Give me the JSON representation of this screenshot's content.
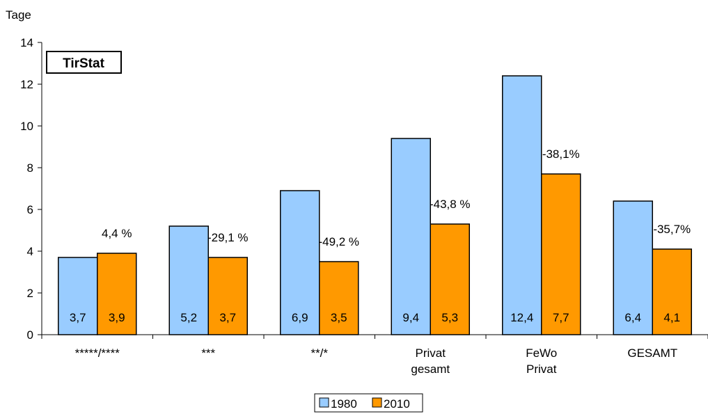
{
  "chart_data": {
    "type": "bar",
    "ylabel": "Tage",
    "ylim": [
      0,
      14
    ],
    "yticks": [
      0,
      2,
      4,
      6,
      8,
      10,
      12,
      14
    ],
    "grid": false,
    "badge": "TirStat",
    "categories": [
      [
        "*****/****"
      ],
      [
        "***"
      ],
      [
        "**/*"
      ],
      [
        "Privat",
        "gesamt"
      ],
      [
        "FeWo",
        "Privat"
      ],
      [
        "GESAMT"
      ]
    ],
    "series": [
      {
        "name": "1980",
        "color": "#99ccff",
        "values": [
          3.7,
          5.2,
          6.9,
          9.4,
          12.4,
          6.4
        ],
        "labels": [
          "3,7",
          "5,2",
          "6,9",
          "9,4",
          "12,4",
          "6,4"
        ]
      },
      {
        "name": "2010",
        "color": "#ff9900",
        "values": [
          3.9,
          3.7,
          3.5,
          5.3,
          7.7,
          4.1
        ],
        "labels": [
          "3,9",
          "3,7",
          "3,5",
          "5,3",
          "7,7",
          "4,1"
        ]
      }
    ],
    "change_labels": [
      "4,4 %",
      "-29,1 %",
      "-49,2 %",
      "-43,8 %",
      "-38,1%",
      "-35,7%"
    ],
    "legend_position": "bottom-center"
  }
}
